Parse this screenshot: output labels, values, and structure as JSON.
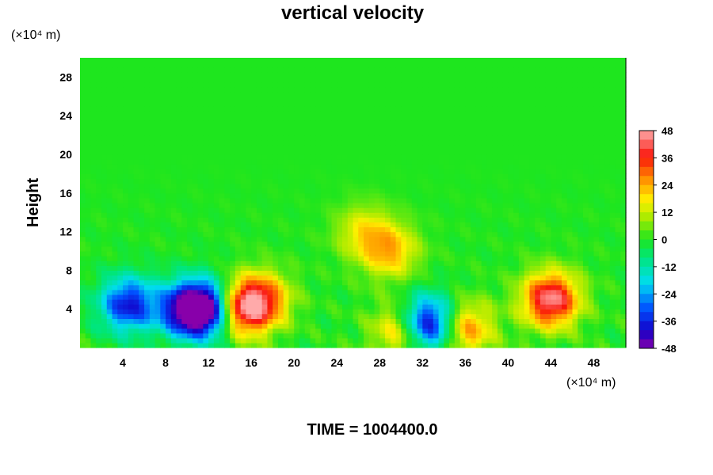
{
  "chart_data": {
    "type": "heatmap",
    "title": "vertical velocity",
    "ylabel": "Height",
    "y_unit": "(×10⁴ m)",
    "x_unit": "(×10⁴ m)",
    "xlim": [
      0,
      51
    ],
    "ylim": [
      0,
      30
    ],
    "x_ticks": [
      "4",
      "8",
      "12",
      "16",
      "20",
      "24",
      "28",
      "32",
      "36",
      "40",
      "44",
      "48"
    ],
    "y_ticks": [
      "4",
      "8",
      "12",
      "16",
      "20",
      "24",
      "28"
    ],
    "colorbar": {
      "range": [
        -48,
        48
      ],
      "ticks": [
        "48",
        "36",
        "24",
        "12",
        "0",
        "-12",
        "-24",
        "-36",
        "-48"
      ]
    },
    "features": [
      {
        "x": 4.5,
        "y": 4.5,
        "value": -38
      },
      {
        "x": 10,
        "y": 4,
        "value": -42
      },
      {
        "x": 12,
        "y": 4,
        "value": -45
      },
      {
        "x": 15,
        "y": 4,
        "value": 40
      },
      {
        "x": 17,
        "y": 5,
        "value": 30
      },
      {
        "x": 32.5,
        "y": 2.5,
        "value": -48
      },
      {
        "x": 30,
        "y": 1.8,
        "value": 25
      },
      {
        "x": 36,
        "y": 2,
        "value": 28
      },
      {
        "x": 44,
        "y": 5,
        "value": 46
      },
      {
        "x": 29,
        "y": 10,
        "value": 22
      },
      {
        "x": 26.5,
        "y": 12,
        "value": 16
      }
    ]
  },
  "footer": {
    "time_label": "TIME = 1004400.0"
  }
}
